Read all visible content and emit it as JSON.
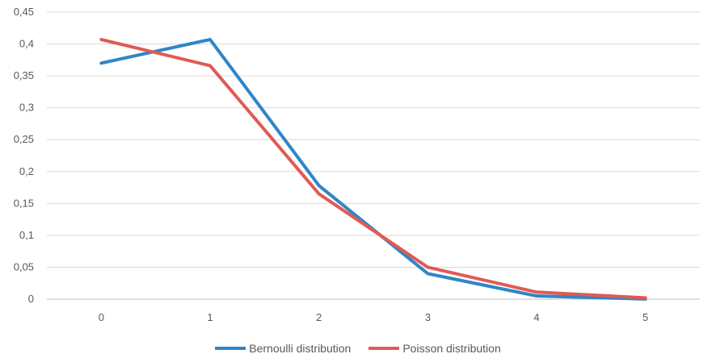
{
  "chart_data": {
    "type": "line",
    "title": "",
    "xlabel": "",
    "ylabel": "",
    "categories": [
      "0",
      "1",
      "2",
      "3",
      "4",
      "5"
    ],
    "x": [
      0,
      1,
      2,
      3,
      4,
      5
    ],
    "ylim": [
      0,
      0.45
    ],
    "y_ticks": [
      0,
      0.05,
      0.1,
      0.15,
      0.2,
      0.25,
      0.3,
      0.35,
      0.4,
      0.45
    ],
    "y_tick_labels": [
      "0",
      "0,05",
      "0,1",
      "0,15",
      "0,2",
      "0,25",
      "0,3",
      "0,35",
      "0,4",
      "0,45"
    ],
    "grid": true,
    "legend_position": "bottom",
    "series": [
      {
        "name": "Bernoulli distribution",
        "color": "#2E86C8",
        "values": [
          0.37,
          0.407,
          0.178,
          0.04,
          0.005,
          0.0002
        ]
      },
      {
        "name": "Poisson distribution",
        "color": "#E05A54",
        "values": [
          0.407,
          0.366,
          0.165,
          0.05,
          0.011,
          0.002
        ]
      }
    ]
  }
}
